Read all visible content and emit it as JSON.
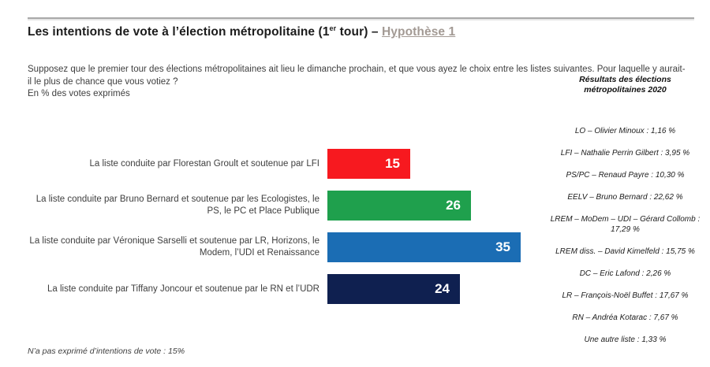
{
  "header": {
    "title_prefix": "Les intentions de vote à l’élection métropolitaine (1",
    "title_sup": "er",
    "title_mid": " tour) – ",
    "hypothesis": "Hypothèse 1"
  },
  "main": {
    "question": "Supposez que le premier tour des élections métropolitaines ait lieu le dimanche prochain, et que vous ayez le choix entre les listes suivantes. Pour laquelle y aurait-il le plus de chance que vous votiez ?",
    "unit_note": "En % des votes exprimés",
    "footnote": "N’a pas exprimé d’intentions de vote : 15%"
  },
  "chart_data": {
    "type": "bar",
    "orientation": "horizontal",
    "categories": [
      "La liste conduite par Florestan Groult et soutenue par LFI",
      "La liste conduite par Bruno Bernard et soutenue par les Ecologistes, le PS, le PC et Place Publique",
      "La liste conduite par Véronique Sarselli et soutenue par LR, Horizons, le Modem, l’UDI et Renaissance",
      "La liste conduite par Tiffany Joncour et soutenue par le RN et l’UDR"
    ],
    "values": [
      15,
      26,
      35,
      24
    ],
    "colors": [
      "#f7191f",
      "#1fa04d",
      "#1b6db4",
      "#0f2050"
    ],
    "value_label_color": "#ffffff",
    "xlim": [
      0,
      35
    ],
    "title": "",
    "xlabel": "",
    "ylabel": "",
    "grid": false,
    "legend": false
  },
  "sidebar": {
    "title": "Résultats des élections métropolitaines 2020",
    "items": [
      "LO – Olivier Minoux : 1,16 %",
      "LFI – Nathalie Perrin Gilbert : 3,95 %",
      "PS/PC – Renaud Payre : 10,30 %",
      "EELV – Bruno Bernard : 22,62 %",
      "LREM – MoDem – UDI – Gérard Collomb : 17,29 %",
      "LREM diss. – David Kimelfeld : 15,75 %",
      "DC – Eric Lafond : 2,26 %",
      "LR – François-Noël Buffet : 17,67 %",
      "RN – Andréa Kotarac : 7,67 %",
      "Une autre liste : 1,33 %"
    ]
  }
}
